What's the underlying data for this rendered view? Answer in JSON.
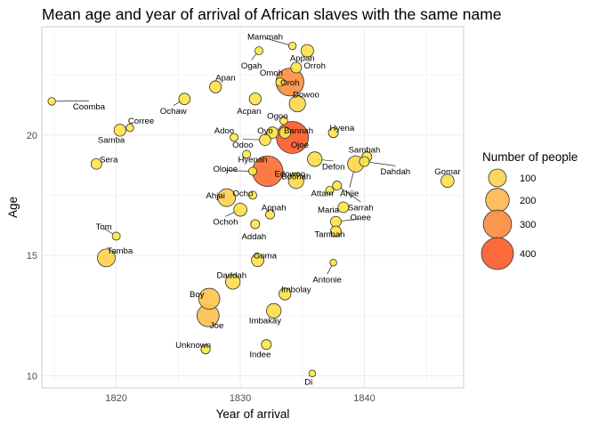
{
  "chart_data": {
    "type": "scatter",
    "title": "Mean age and year of arrival of African slaves with the same name",
    "xlabel": "Year of arrival",
    "ylabel": "Age",
    "xlim": [
      1814,
      1848
    ],
    "ylim": [
      9.5,
      24.5
    ],
    "x_ticks": [
      1820,
      1830,
      1840
    ],
    "y_ticks": [
      10,
      15,
      20
    ],
    "grid": true,
    "legend": {
      "title": "Number of people",
      "position": "right",
      "entries": [
        {
          "label": "100",
          "value": 100
        },
        {
          "label": "200",
          "value": 200
        },
        {
          "label": "300",
          "value": 300
        },
        {
          "label": "400",
          "value": 400
        }
      ]
    },
    "points": [
      {
        "name": "Mammah",
        "x": 1834.2,
        "y": 23.7,
        "n": 8,
        "lx": 1832.0,
        "ly": 24.1
      },
      {
        "name": "Ogah",
        "x": 1831.5,
        "y": 23.5,
        "n": 10,
        "lx": 1830.9,
        "ly": 22.9
      },
      {
        "name": "Orroh",
        "x": 1835.4,
        "y": 23.5,
        "n": 40,
        "lx": 1836.0,
        "ly": 22.9
      },
      {
        "name": "Appan",
        "x": 1834.5,
        "y": 22.8,
        "n": 25,
        "lx": 1835.0,
        "ly": 23.2
      },
      {
        "name": "Apan",
        "x": 1828.0,
        "y": 22.0,
        "n": 35,
        "lx": 1828.8,
        "ly": 22.4
      },
      {
        "name": "Omoh",
        "x": 1833.2,
        "y": 22.2,
        "n": 12,
        "lx": 1832.5,
        "ly": 22.6
      },
      {
        "name": "Oroh",
        "x": 1834.0,
        "y": 22.2,
        "n": 290,
        "lx": 1834.0,
        "ly": 22.2
      },
      {
        "name": "Dowoo",
        "x": 1834.6,
        "y": 21.3,
        "n": 80,
        "lx": 1835.3,
        "ly": 21.7
      },
      {
        "name": "Coomba",
        "x": 1814.8,
        "y": 21.4,
        "n": 8,
        "lx": 1817.8,
        "ly": 21.2
      },
      {
        "name": "Ochaw",
        "x": 1825.5,
        "y": 21.5,
        "n": 30,
        "lx": 1824.6,
        "ly": 21.0
      },
      {
        "name": "Acpan",
        "x": 1831.2,
        "y": 21.5,
        "n": 35,
        "lx": 1830.7,
        "ly": 21.0
      },
      {
        "name": "Ogoo",
        "x": 1833.5,
        "y": 20.6,
        "n": 10,
        "lx": 1833.0,
        "ly": 20.8
      },
      {
        "name": "Corree",
        "x": 1821.1,
        "y": 20.3,
        "n": 8,
        "lx": 1822.0,
        "ly": 20.6
      },
      {
        "name": "Samba",
        "x": 1820.3,
        "y": 20.2,
        "n": 35,
        "lx": 1819.6,
        "ly": 19.8
      },
      {
        "name": "Adoo",
        "x": 1829.5,
        "y": 19.9,
        "n": 10,
        "lx": 1828.7,
        "ly": 20.2
      },
      {
        "name": "Oyo",
        "x": 1832.6,
        "y": 20.1,
        "n": 30,
        "lx": 1832.0,
        "ly": 20.2
      },
      {
        "name": "Bannah",
        "x": 1833.6,
        "y": 20.1,
        "n": 30,
        "lx": 1834.7,
        "ly": 20.2
      },
      {
        "name": "Hyena",
        "x": 1837.5,
        "y": 20.1,
        "n": 20,
        "lx": 1838.2,
        "ly": 20.3
      },
      {
        "name": "Odoo",
        "x": 1832.0,
        "y": 19.8,
        "n": 30,
        "lx": 1830.2,
        "ly": 19.6
      },
      {
        "name": "Ojoe",
        "x": 1834.2,
        "y": 19.9,
        "n": 400,
        "lx": 1834.8,
        "ly": 19.6
      },
      {
        "name": "Hyenah",
        "x": 1830.5,
        "y": 19.2,
        "n": 10,
        "lx": 1831.0,
        "ly": 19.0
      },
      {
        "name": "Sambah",
        "x": 1840.2,
        "y": 19.1,
        "n": 20,
        "lx": 1840.0,
        "ly": 19.4
      },
      {
        "name": "Sera",
        "x": 1818.4,
        "y": 18.8,
        "n": 25,
        "lx": 1819.4,
        "ly": 19.0
      },
      {
        "name": "Defon",
        "x": 1836.0,
        "y": 19.0,
        "n": 60,
        "lx": 1837.5,
        "ly": 18.7
      },
      {
        "name": "Ahjie",
        "x": 1839.3,
        "y": 18.8,
        "n": 80,
        "lx": 1838.8,
        "ly": 17.6
      },
      {
        "name": "Dahdah",
        "x": 1840.0,
        "y": 18.9,
        "n": 20,
        "lx": 1842.5,
        "ly": 18.5
      },
      {
        "name": "Gomar",
        "x": 1846.7,
        "y": 18.1,
        "n": 45,
        "lx": 1846.7,
        "ly": 18.5
      },
      {
        "name": "Olojoe",
        "x": 1831.0,
        "y": 18.5,
        "n": 10,
        "lx": 1828.8,
        "ly": 18.6
      },
      {
        "name": "Edowoo",
        "x": 1832.2,
        "y": 18.5,
        "n": 360,
        "lx": 1834.0,
        "ly": 18.4
      },
      {
        "name": "Boonah",
        "x": 1834.5,
        "y": 18.1,
        "n": 70,
        "lx": 1834.5,
        "ly": 18.3
      },
      {
        "name": "Attam",
        "x": 1837.2,
        "y": 17.7,
        "n": 10,
        "lx": 1836.6,
        "ly": 17.6
      },
      {
        "name": "Sarrah",
        "x": 1837.8,
        "y": 17.9,
        "n": 15,
        "lx": 1839.7,
        "ly": 17.0
      },
      {
        "name": "Ocho",
        "x": 1831.0,
        "y": 17.5,
        "n": 10,
        "lx": 1830.2,
        "ly": 17.6
      },
      {
        "name": "Ahjai",
        "x": 1828.9,
        "y": 17.4,
        "n": 100,
        "lx": 1828.0,
        "ly": 17.5
      },
      {
        "name": "Maria",
        "x": 1838.3,
        "y": 17.0,
        "n": 25,
        "lx": 1837.1,
        "ly": 16.9
      },
      {
        "name": "Appah",
        "x": 1832.4,
        "y": 16.7,
        "n": 15,
        "lx": 1832.7,
        "ly": 17.0
      },
      {
        "name": "Ochoh",
        "x": 1830.0,
        "y": 16.9,
        "n": 45,
        "lx": 1828.8,
        "ly": 16.4
      },
      {
        "name": "Onee",
        "x": 1837.7,
        "y": 16.4,
        "n": 25,
        "lx": 1839.7,
        "ly": 16.6
      },
      {
        "name": "Addah",
        "x": 1831.2,
        "y": 16.3,
        "n": 15,
        "lx": 1831.1,
        "ly": 15.8
      },
      {
        "name": "Tambah",
        "x": 1837.7,
        "y": 16.0,
        "n": 25,
        "lx": 1837.2,
        "ly": 15.9
      },
      {
        "name": "Tom",
        "x": 1820.0,
        "y": 15.8,
        "n": 10,
        "lx": 1819.0,
        "ly": 16.2
      },
      {
        "name": "Tamba",
        "x": 1819.2,
        "y": 14.9,
        "n": 100,
        "lx": 1820.3,
        "ly": 15.2
      },
      {
        "name": "Goma",
        "x": 1831.4,
        "y": 14.8,
        "n": 40,
        "lx": 1832.0,
        "ly": 15.0
      },
      {
        "name": "Antonie",
        "x": 1837.5,
        "y": 14.7,
        "n": 5,
        "lx": 1837.0,
        "ly": 14.0
      },
      {
        "name": "Daddah",
        "x": 1829.4,
        "y": 13.9,
        "n": 60,
        "lx": 1829.3,
        "ly": 14.2
      },
      {
        "name": "Imbolay",
        "x": 1833.6,
        "y": 13.4,
        "n": 35,
        "lx": 1834.5,
        "ly": 13.6
      },
      {
        "name": "Boy",
        "x": 1827.5,
        "y": 13.2,
        "n": 150,
        "lx": 1826.5,
        "ly": 13.4
      },
      {
        "name": "Joe",
        "x": 1827.4,
        "y": 12.5,
        "n": 170,
        "lx": 1828.1,
        "ly": 12.1
      },
      {
        "name": "Imbakay",
        "x": 1832.7,
        "y": 12.7,
        "n": 60,
        "lx": 1832.0,
        "ly": 12.3
      },
      {
        "name": "Unknown",
        "x": 1827.2,
        "y": 11.1,
        "n": 15,
        "lx": 1826.2,
        "ly": 11.3
      },
      {
        "name": "Indee",
        "x": 1832.1,
        "y": 11.3,
        "n": 20,
        "lx": 1831.6,
        "ly": 10.9
      },
      {
        "name": "Di",
        "x": 1835.8,
        "y": 10.1,
        "n": 5,
        "lx": 1835.5,
        "ly": 9.75
      }
    ]
  }
}
